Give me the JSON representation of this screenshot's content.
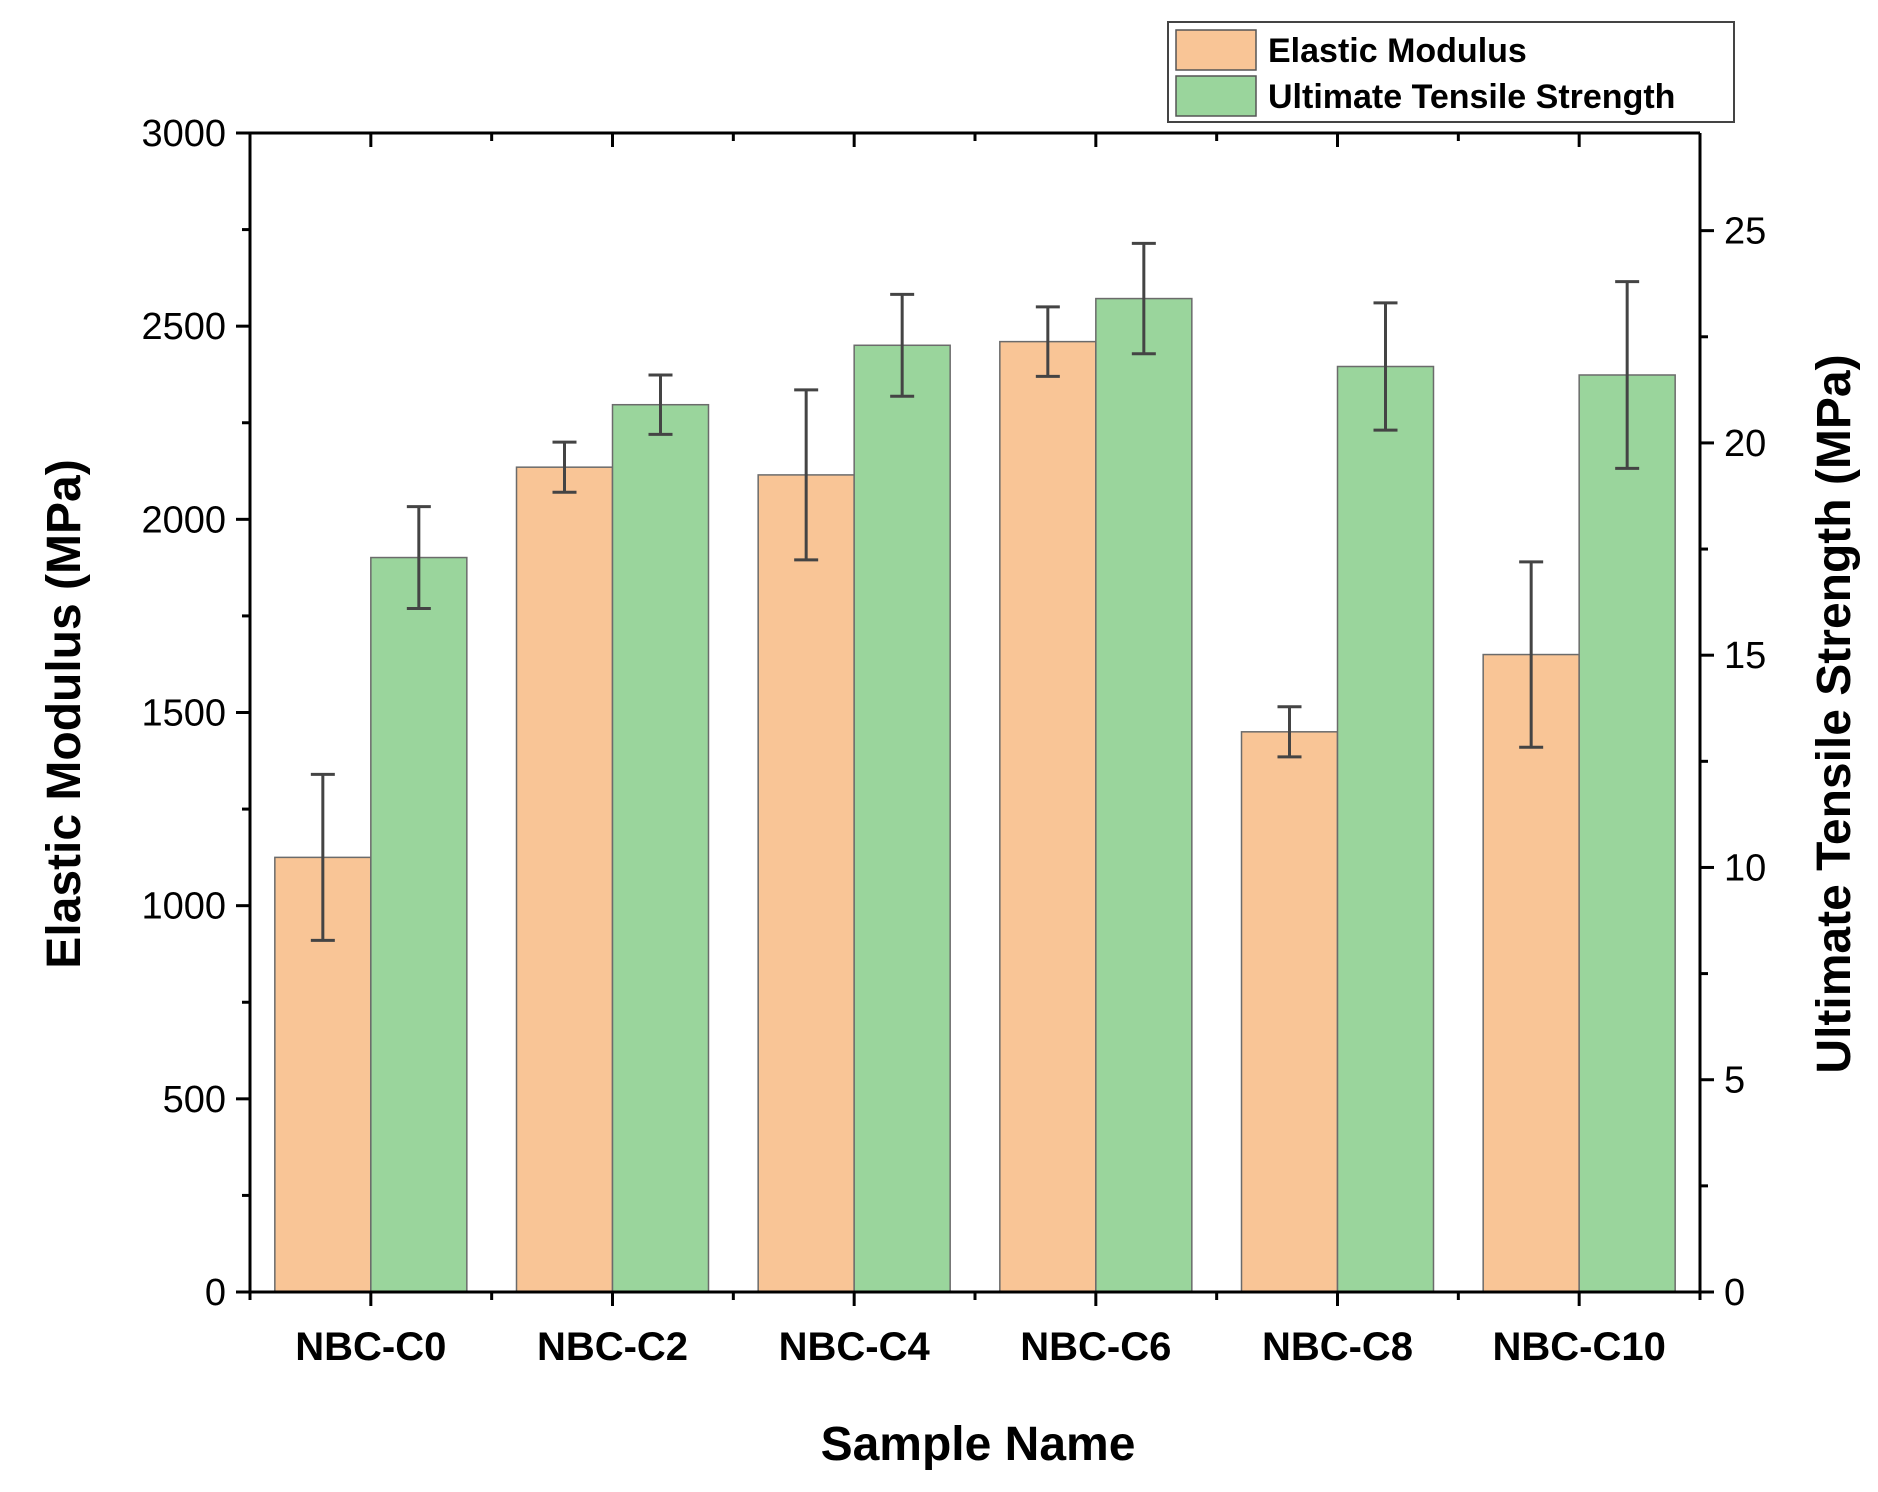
{
  "chart_data": {
    "type": "bar",
    "categories": [
      "NBC-C0",
      "NBC-C2",
      "NBC-C4",
      "NBC-C6",
      "NBC-C8",
      "NBC-C10"
    ],
    "xlabel": "Sample Name",
    "ylabel": "Elastic Modulus (MPa)",
    "y2label": "Ultimate Tensile Strength (MPa)",
    "ylim": [
      0,
      3000
    ],
    "y2lim": [
      0,
      27.3
    ],
    "yticks": [
      "0",
      "500",
      "1000",
      "1500",
      "2000",
      "2500",
      "3000"
    ],
    "y2ticks": [
      "0",
      "5",
      "10",
      "15",
      "20",
      "25"
    ],
    "legend_position": "top-right",
    "series": [
      {
        "name": "Elastic Modulus",
        "axis": "left",
        "color": "#F9C596",
        "values": [
          1125,
          2135,
          2115,
          2460,
          1450,
          1650
        ],
        "errors": [
          215,
          65,
          220,
          90,
          65,
          240
        ]
      },
      {
        "name": "Ultimate Tensile Strength",
        "axis": "right",
        "color": "#9AD59C",
        "values": [
          17.3,
          20.9,
          22.3,
          23.4,
          21.8,
          21.6
        ],
        "errors": [
          1.2,
          0.7,
          1.2,
          1.3,
          1.5,
          2.2
        ]
      }
    ]
  }
}
